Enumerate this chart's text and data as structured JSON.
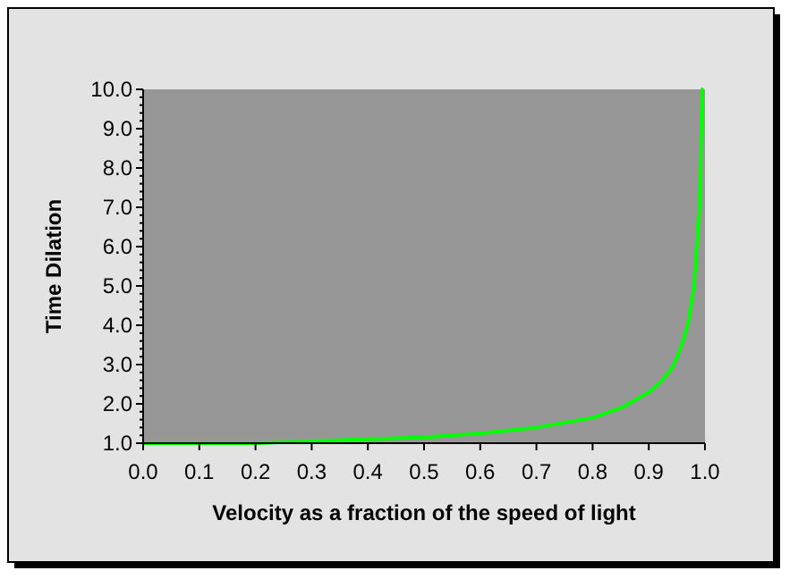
{
  "chart_data": {
    "type": "line",
    "xlabel": "Velocity as a fraction of the speed of light",
    "ylabel": "Time Dilation",
    "x": [
      0,
      0.1,
      0.2,
      0.3,
      0.4,
      0.5,
      0.6,
      0.7,
      0.8,
      0.85,
      0.9,
      0.92,
      0.94,
      0.95,
      0.96,
      0.97,
      0.98,
      0.99,
      0.995
    ],
    "series": [
      {
        "color": "#00ff00",
        "values": [
          1.0,
          1.0,
          1.0,
          1.05,
          1.1,
          1.15,
          1.25,
          1.4,
          1.65,
          1.9,
          2.3,
          2.55,
          2.9,
          3.2,
          3.6,
          4.1,
          5.0,
          7.1,
          10.0
        ]
      }
    ],
    "xlim": [
      0,
      1
    ],
    "xticks": [
      {
        "value": 0,
        "label": "0.0"
      },
      0.1,
      0.2,
      0.3,
      0.4,
      0.5,
      0.6,
      0.7,
      0.8,
      0.9,
      {
        "value": 1,
        "label": "1.0"
      }
    ],
    "ylim": [
      1,
      10
    ],
    "yticks": [
      {
        "value": 1,
        "label": "1.0"
      },
      {
        "value": 2,
        "label": "2.0"
      },
      {
        "value": 3,
        "label": "3.0"
      },
      {
        "value": 4,
        "label": "4.0"
      },
      {
        "value": 5,
        "label": "5.0"
      },
      {
        "value": 6,
        "label": "6.0"
      },
      {
        "value": 7,
        "label": "7.0"
      },
      {
        "value": 8,
        "label": "8.0"
      },
      {
        "value": 9,
        "label": "9.0"
      },
      {
        "value": 10,
        "label": "10.0"
      }
    ],
    "grid": false,
    "marker": "none",
    "line_style": "solid"
  }
}
